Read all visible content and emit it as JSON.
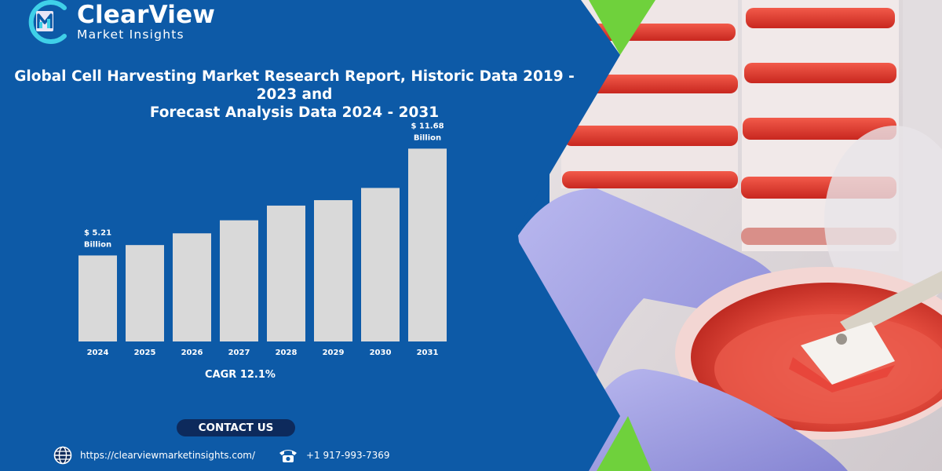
{
  "brand": {
    "name": "ClearView",
    "tagline": "Market Insights"
  },
  "report_title": {
    "line1": "Global Cell Harvesting Market Research Report, Historic Data 2019 - 2023 and",
    "line2": "Forecast Analysis Data 2024 - 2031"
  },
  "chart_data": {
    "type": "bar",
    "title": "",
    "xlabel": "",
    "ylabel": "",
    "categories": [
      "2024",
      "2025",
      "2026",
      "2027",
      "2028",
      "2029",
      "2030",
      "2031"
    ],
    "values": [
      5.21,
      5.84,
      6.55,
      7.34,
      8.23,
      8.56,
      9.3,
      11.68
    ],
    "unit": "Billion USD",
    "ylim": [
      0,
      12.6
    ],
    "grid": false,
    "bar_color": "#d9d9d9",
    "data_labels": [
      {
        "category": "2024",
        "line1": "$ 5.21",
        "line2": "Billion"
      },
      {
        "category": "2031",
        "line1": "$ 11.68",
        "line2": "Billion"
      }
    ]
  },
  "cagr": "CAGR 12.1%",
  "contact": {
    "button_label": "CONTACT US",
    "website": "https://clearviewmarketinsights.com/",
    "phone": "+1 917-993-7369",
    "globe_icon": "globe-icon",
    "phone_icon": "telephone-icon"
  },
  "colors": {
    "panel_blue": "#0d5aa7",
    "accent_green": "#6fd13c",
    "button_navy": "#0d2a5c",
    "logo_cyan": "#3fd0e8"
  }
}
